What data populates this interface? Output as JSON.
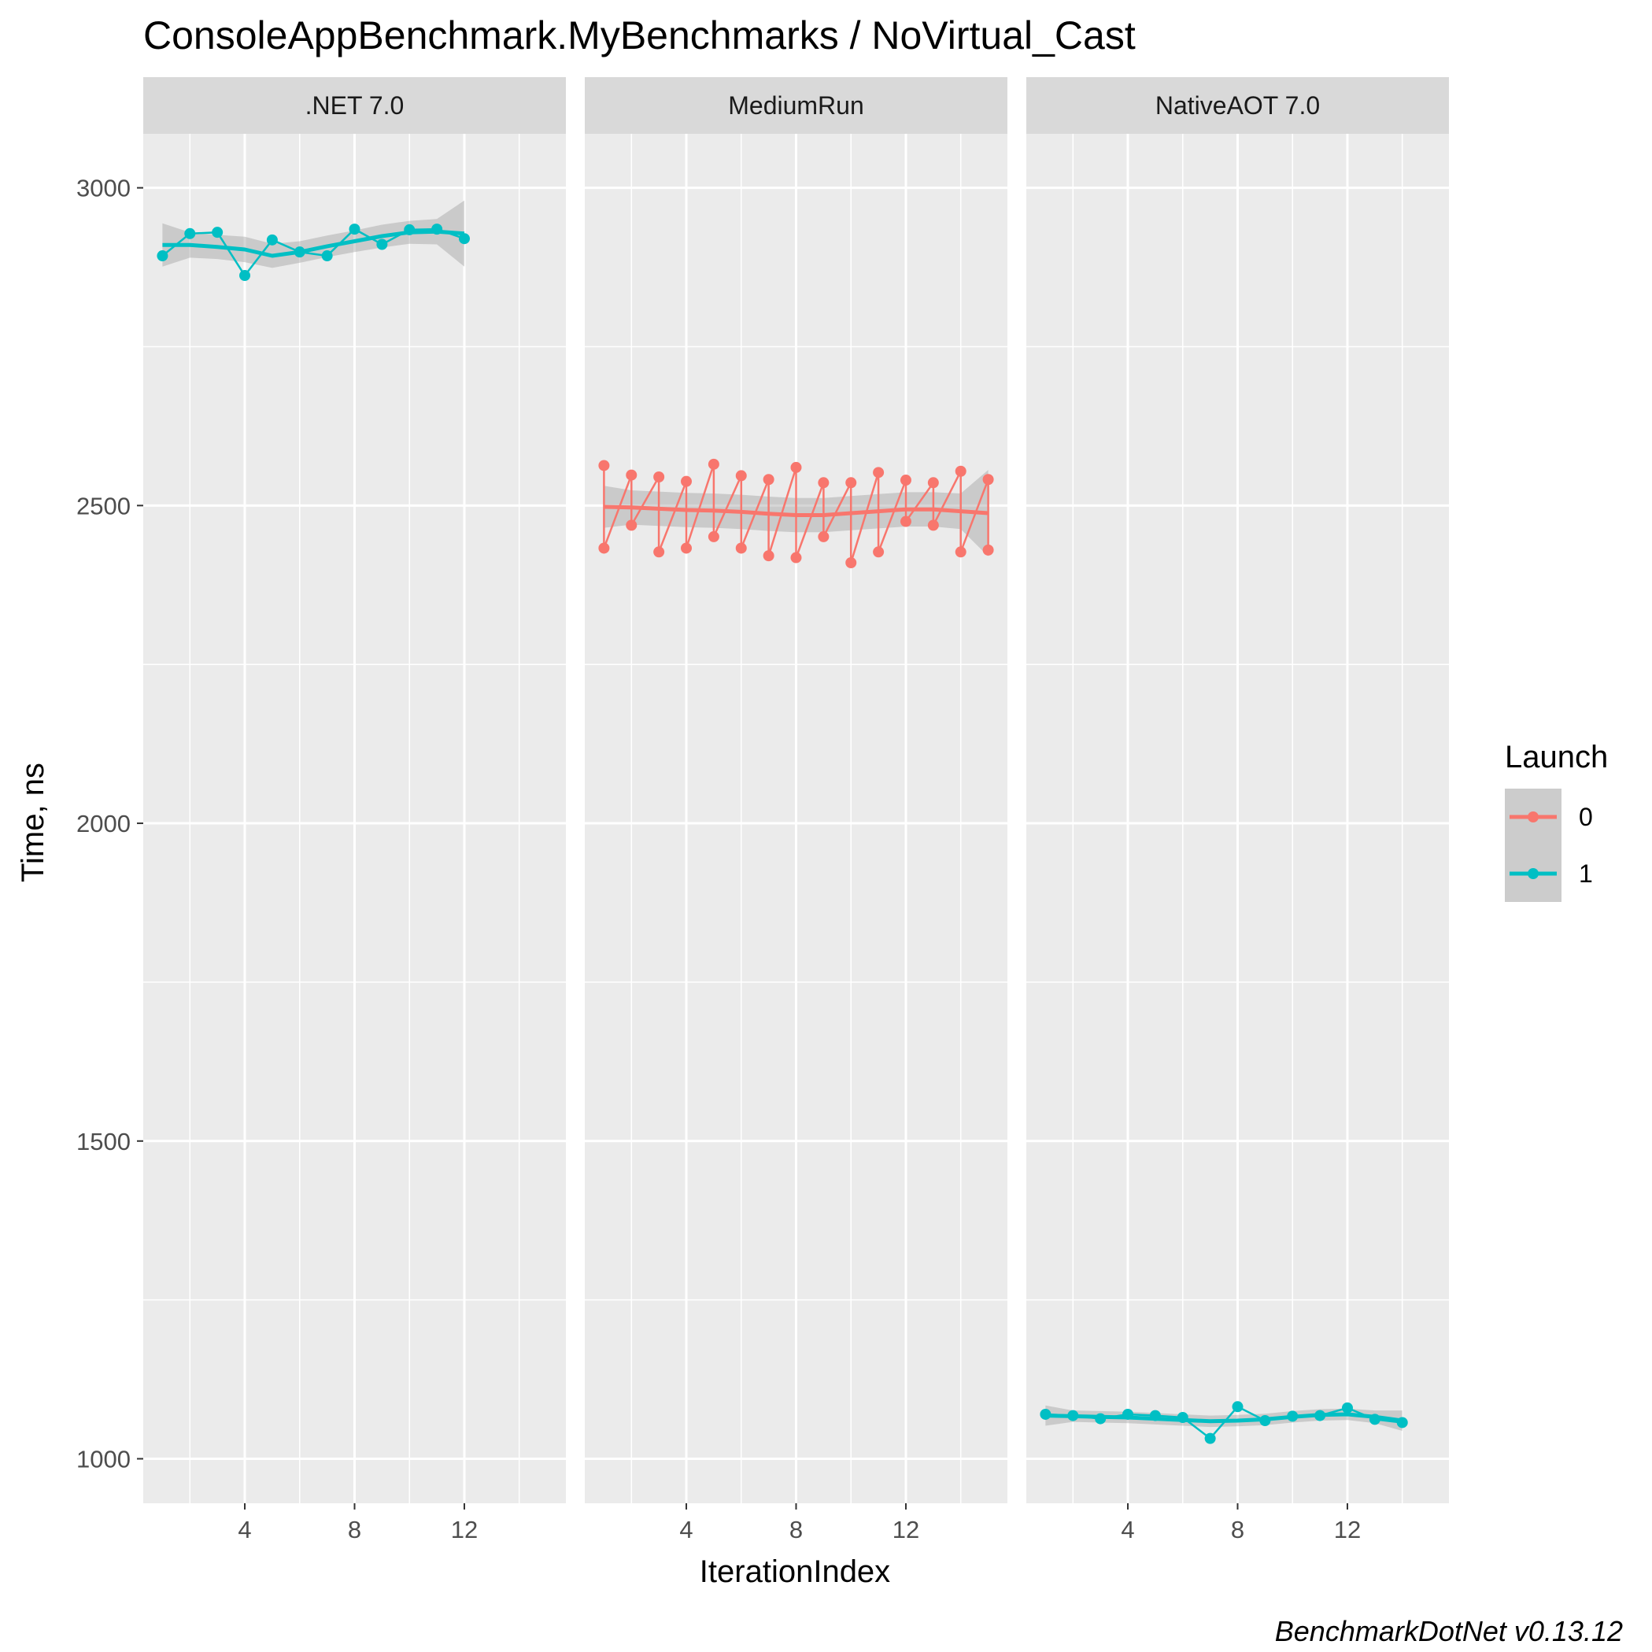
{
  "chart_data": {
    "type": "line",
    "title": "ConsoleAppBenchmark.MyBenchmarks / NoVirtual_Cast",
    "xlabel": "IterationIndex",
    "ylabel": "Time, ns",
    "caption": "BenchmarkDotNet v0.13.12",
    "ylim": [
      930,
      3085
    ],
    "xlim": [
      0.3,
      15.7
    ],
    "x_ticks": [
      4,
      8,
      12
    ],
    "y_ticks": [
      1000,
      1500,
      2000,
      2500,
      3000
    ],
    "grid": true,
    "legend": {
      "title": "Launch",
      "position": "right",
      "entries": [
        {
          "label": "0",
          "color": "#F8766D"
        },
        {
          "label": "1",
          "color": "#00BFC4"
        }
      ]
    },
    "panels": [
      {
        "strip": ".NET 7.0",
        "series": [
          {
            "launch": "1",
            "color": "#00BFC4",
            "x": [
              1,
              2,
              3,
              4,
              5,
              6,
              7,
              8,
              9,
              10,
              11,
              12
            ],
            "values": [
              2893,
              2928,
              2930,
              2862,
              2918,
              2899,
              2893,
              2935,
              2911,
              2934,
              2935,
              2920
            ],
            "smooth": [
              2910,
              2910,
              2907,
              2903,
              2893,
              2899,
              2908,
              2916,
              2924,
              2930,
              2931,
              2928
            ],
            "band_low": [
              2876,
              2890,
              2888,
              2883,
              2874,
              2882,
              2891,
              2899,
              2906,
              2912,
              2911,
              2876
            ],
            "band_high": [
              2944,
              2930,
              2926,
              2923,
              2912,
              2916,
              2925,
              2933,
              2942,
              2948,
              2951,
              2980
            ]
          }
        ]
      },
      {
        "strip": "MediumRun",
        "series": [
          {
            "launch": "0",
            "color": "#F8766D",
            "x": [
              1,
              1,
              2,
              2,
              3,
              3,
              4,
              4,
              5,
              5,
              6,
              6,
              7,
              7,
              8,
              8,
              9,
              9,
              10,
              10,
              11,
              11,
              12,
              12,
              13,
              13,
              14,
              14,
              15,
              15
            ],
            "values": [
              2563,
              2433,
              2548,
              2469,
              2545,
              2427,
              2538,
              2433,
              2565,
              2451,
              2547,
              2433,
              2541,
              2421,
              2560,
              2418,
              2536,
              2451,
              2536,
              2410,
              2552,
              2427,
              2540,
              2475,
              2536,
              2469,
              2554,
              2427,
              2541,
              2430
            ],
            "smooth_x": [
              1,
              2,
              3,
              4,
              5,
              6,
              7,
              8,
              9,
              10,
              11,
              12,
              13,
              14,
              15
            ],
            "smooth": [
              2498,
              2497,
              2495,
              2493,
              2492,
              2490,
              2487,
              2485,
              2485,
              2488,
              2491,
              2494,
              2494,
              2491,
              2488
            ],
            "band_low": [
              2465,
              2470,
              2468,
              2466,
              2465,
              2463,
              2460,
              2458,
              2458,
              2461,
              2464,
              2467,
              2467,
              2463,
              2420
            ],
            "band_high": [
              2531,
              2524,
              2522,
              2520,
              2519,
              2517,
              2514,
              2512,
              2512,
              2515,
              2518,
              2521,
              2521,
              2519,
              2556
            ]
          }
        ]
      },
      {
        "strip": "NativeAOT 7.0",
        "series": [
          {
            "launch": "1",
            "color": "#00BFC4",
            "x": [
              1,
              2,
              3,
              4,
              5,
              6,
              7,
              8,
              9,
              10,
              11,
              12,
              13,
              14
            ],
            "values": [
              1070,
              1068,
              1063,
              1070,
              1068,
              1065,
              1032,
              1082,
              1060,
              1067,
              1068,
              1080,
              1062,
              1057
            ],
            "smooth": [
              1068,
              1067,
              1066,
              1065,
              1063,
              1061,
              1059,
              1060,
              1062,
              1066,
              1069,
              1070,
              1066,
              1060
            ],
            "band_low": [
              1052,
              1058,
              1057,
              1056,
              1054,
              1052,
              1050,
              1051,
              1053,
              1057,
              1060,
              1061,
              1056,
              1044
            ],
            "band_high": [
              1084,
              1076,
              1075,
              1074,
              1072,
              1070,
              1068,
              1069,
              1071,
              1075,
              1078,
              1079,
              1076,
              1076
            ]
          }
        ]
      }
    ]
  }
}
